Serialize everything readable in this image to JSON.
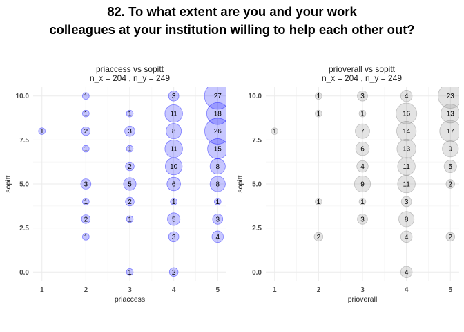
{
  "title_lines": [
    "82. To what extent are you and your work",
    "colleagues at your institution willing to help each other out?"
  ],
  "chart_data": [
    {
      "type": "scatter",
      "title": "priaccess vs sopitt",
      "subtitle": "n_x = 204 , n_y = 249",
      "xlabel": "priaccess",
      "ylabel": "sopitt",
      "x_ticks": [
        "1",
        "2",
        "3",
        "4",
        "5"
      ],
      "y_ticks": [
        "0.0",
        "2.5",
        "5.0",
        "7.5",
        "10.0"
      ],
      "xlim": [
        0.8,
        5.2
      ],
      "ylim": [
        -0.5,
        10.5
      ],
      "grid": true,
      "fill_color": "#0000ff",
      "points": [
        {
          "x": 1,
          "y": 8,
          "n": 1
        },
        {
          "x": 2,
          "y": 10,
          "n": 1
        },
        {
          "x": 2,
          "y": 9,
          "n": 1
        },
        {
          "x": 2,
          "y": 8,
          "n": 2
        },
        {
          "x": 2,
          "y": 7,
          "n": 1
        },
        {
          "x": 2,
          "y": 5,
          "n": 3
        },
        {
          "x": 2,
          "y": 4,
          "n": 1
        },
        {
          "x": 2,
          "y": 3,
          "n": 2
        },
        {
          "x": 2,
          "y": 2,
          "n": 1
        },
        {
          "x": 3,
          "y": 9,
          "n": 1
        },
        {
          "x": 3,
          "y": 8,
          "n": 3
        },
        {
          "x": 3,
          "y": 7,
          "n": 1
        },
        {
          "x": 3,
          "y": 6,
          "n": 2
        },
        {
          "x": 3,
          "y": 5,
          "n": 5
        },
        {
          "x": 3,
          "y": 4,
          "n": 2
        },
        {
          "x": 3,
          "y": 3,
          "n": 1
        },
        {
          "x": 3,
          "y": 0,
          "n": 1
        },
        {
          "x": 4,
          "y": 10,
          "n": 3
        },
        {
          "x": 4,
          "y": 9,
          "n": 11
        },
        {
          "x": 4,
          "y": 8,
          "n": 8
        },
        {
          "x": 4,
          "y": 7,
          "n": 11
        },
        {
          "x": 4,
          "y": 6,
          "n": 10
        },
        {
          "x": 4,
          "y": 5,
          "n": 6
        },
        {
          "x": 4,
          "y": 4,
          "n": 1
        },
        {
          "x": 4,
          "y": 3,
          "n": 5
        },
        {
          "x": 4,
          "y": 2,
          "n": 3
        },
        {
          "x": 4,
          "y": 0,
          "n": 2
        },
        {
          "x": 5,
          "y": 10,
          "n": 27
        },
        {
          "x": 5,
          "y": 9,
          "n": 18
        },
        {
          "x": 5,
          "y": 8,
          "n": 26
        },
        {
          "x": 5,
          "y": 7,
          "n": 15
        },
        {
          "x": 5,
          "y": 6,
          "n": 8
        },
        {
          "x": 5,
          "y": 5,
          "n": 8
        },
        {
          "x": 5,
          "y": 4,
          "n": 1
        },
        {
          "x": 5,
          "y": 3,
          "n": 3
        },
        {
          "x": 5,
          "y": 2,
          "n": 4
        }
      ]
    },
    {
      "type": "scatter",
      "title": "prioverall vs sopitt",
      "subtitle": "n_x = 204 , n_y = 249",
      "xlabel": "prioverall",
      "ylabel": "sopitt",
      "x_ticks": [
        "1",
        "2",
        "3",
        "4",
        "5"
      ],
      "y_ticks": [
        "0.0",
        "2.5",
        "5.0",
        "7.5",
        "10.0"
      ],
      "xlim": [
        0.8,
        5.2
      ],
      "ylim": [
        -0.5,
        10.5
      ],
      "grid": true,
      "fill_color": "#808080",
      "points": [
        {
          "x": 1,
          "y": 8,
          "n": 1
        },
        {
          "x": 2,
          "y": 10,
          "n": 1
        },
        {
          "x": 2,
          "y": 9,
          "n": 1
        },
        {
          "x": 2,
          "y": 4,
          "n": 1
        },
        {
          "x": 2,
          "y": 2,
          "n": 2
        },
        {
          "x": 3,
          "y": 10,
          "n": 3
        },
        {
          "x": 3,
          "y": 9,
          "n": 1
        },
        {
          "x": 3,
          "y": 8,
          "n": 7
        },
        {
          "x": 3,
          "y": 7,
          "n": 6
        },
        {
          "x": 3,
          "y": 6,
          "n": 4
        },
        {
          "x": 3,
          "y": 5,
          "n": 9
        },
        {
          "x": 3,
          "y": 4,
          "n": 1
        },
        {
          "x": 3,
          "y": 3,
          "n": 3
        },
        {
          "x": 4,
          "y": 10,
          "n": 4
        },
        {
          "x": 4,
          "y": 9,
          "n": 16
        },
        {
          "x": 4,
          "y": 8,
          "n": 14
        },
        {
          "x": 4,
          "y": 7,
          "n": 13
        },
        {
          "x": 4,
          "y": 6,
          "n": 11
        },
        {
          "x": 4,
          "y": 5,
          "n": 11
        },
        {
          "x": 4,
          "y": 4,
          "n": 3
        },
        {
          "x": 4,
          "y": 3,
          "n": 8
        },
        {
          "x": 4,
          "y": 2,
          "n": 4
        },
        {
          "x": 4,
          "y": 0,
          "n": 4
        },
        {
          "x": 5,
          "y": 10,
          "n": 23
        },
        {
          "x": 5,
          "y": 9,
          "n": 13
        },
        {
          "x": 5,
          "y": 8,
          "n": 17
        },
        {
          "x": 5,
          "y": 7,
          "n": 9
        },
        {
          "x": 5,
          "y": 6,
          "n": 5
        },
        {
          "x": 5,
          "y": 5,
          "n": 2
        },
        {
          "x": 5,
          "y": 2,
          "n": 2
        }
      ]
    }
  ]
}
